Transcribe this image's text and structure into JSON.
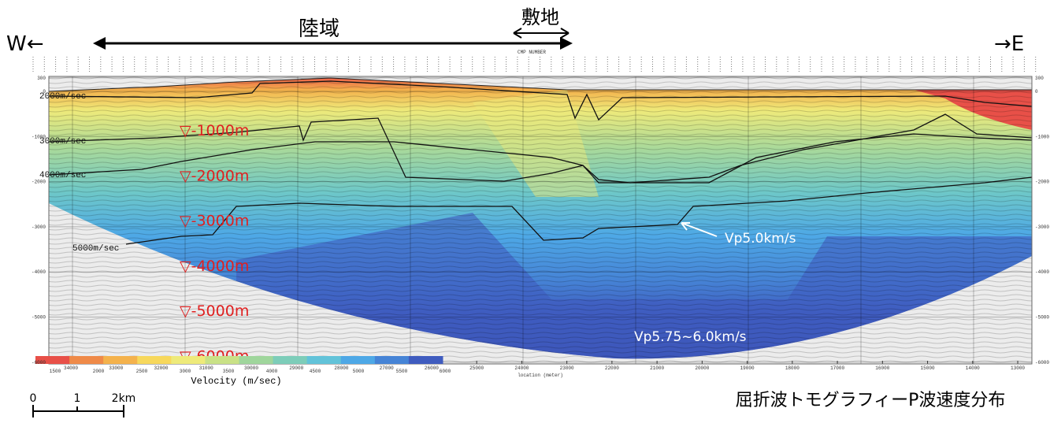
{
  "header": {
    "west": "W←",
    "east": "→E",
    "land": "陸域",
    "site": "敷地",
    "cmp_label": "CMP NUMBER"
  },
  "section": {
    "elevation_ticks": [
      300,
      0,
      -1000,
      -2000,
      -3000,
      -4000,
      -5000,
      -6000
    ],
    "location_ticks": [
      34000,
      33000,
      32000,
      31000,
      30000,
      29000,
      28000,
      27000,
      26000,
      25000,
      24000,
      23000,
      22000,
      21000,
      20000,
      19000,
      18000,
      17000,
      16000,
      15000,
      14000,
      13000
    ],
    "location_label": "location (meter)",
    "contour_labels": [
      "2000m/sec",
      "3000m/sec",
      "4000m/sec",
      "5000m/sec"
    ],
    "depth_markers": [
      "▽-1000m",
      "▽-2000m",
      "▽-3000m",
      "▽-4000m",
      "▽-5000m",
      "▽-6000m"
    ],
    "annotations": [
      "Vp5.0km/s",
      "Vp5.75~6.0km/s"
    ]
  },
  "colorbar": {
    "label": "Velocity (m/sec)",
    "ticks": [
      1500,
      2000,
      2500,
      3000,
      3500,
      4000,
      4500,
      5000,
      5500,
      6000
    ],
    "colors": [
      "#e85048",
      "#ef8a48",
      "#f4b24c",
      "#f7d85c",
      "#eeea7a",
      "#c9e186",
      "#9fd69c",
      "#7dcdb9",
      "#62c3d9",
      "#4ea8e6",
      "#4684d6",
      "#3f5cbf"
    ]
  },
  "scale_bar": {
    "labels": [
      "0",
      "1",
      "2km"
    ]
  },
  "caption": "屈折波トモグラフィーP波速度分布"
}
